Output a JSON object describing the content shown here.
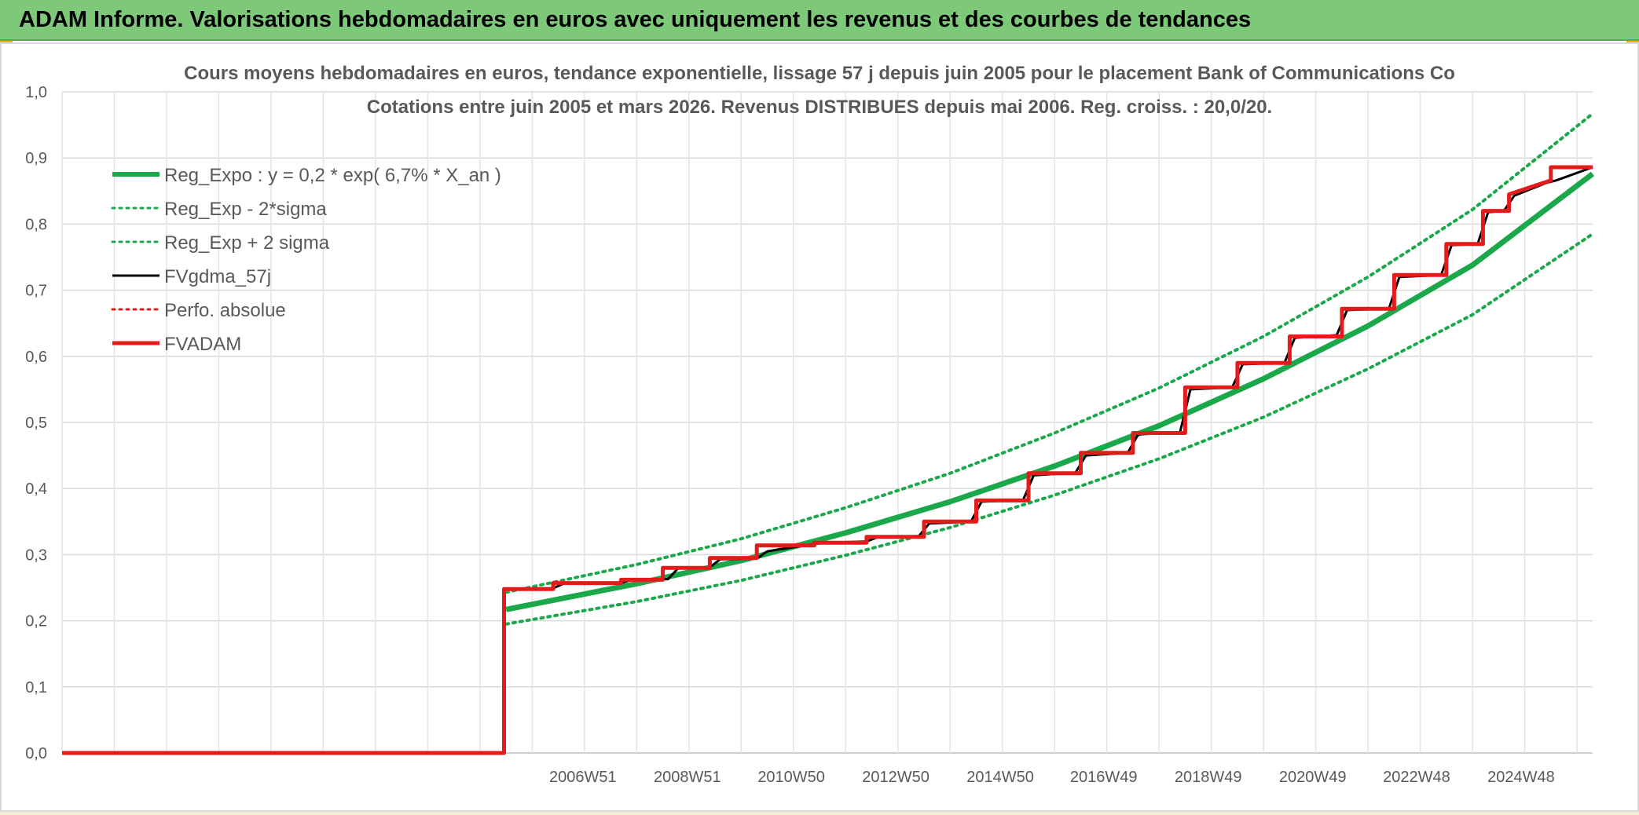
{
  "banner": {
    "title": "ADAM Informe. Valorisations hebdomadaires en euros avec uniquement les revenus et des courbes de tendances"
  },
  "colors": {
    "banner_bg": "#7ec87a",
    "accent_corner": "#f2b600",
    "reg_green": "#1aa84a",
    "adam_red": "#e31b1b",
    "fv_black": "#000000"
  },
  "chart_data": {
    "type": "line",
    "title": "Cours moyens hebdomadaires en euros, tendance exponentielle, lissage 57 j depuis juin 2005 pour le placement Bank of Communications Co",
    "subtitle": "Cotations entre juin 2005 et mars 2026. Revenus DISTRIBUES depuis mai 2006. Reg. croiss. : 20,0/20.",
    "xlabel": "",
    "ylabel": "",
    "ylim": [
      0,
      1.0
    ],
    "y_ticks": [
      "0,0",
      "0,1",
      "0,2",
      "0,3",
      "0,4",
      "0,5",
      "0,6",
      "0,7",
      "0,8",
      "0,9",
      "1,0"
    ],
    "xlim": [
      1997.0,
      2026.3
    ],
    "x_tick_labels": [
      {
        "label": "2006W51",
        "x": 2006.97
      },
      {
        "label": "2008W51",
        "x": 2008.97
      },
      {
        "label": "2010W50",
        "x": 2010.96
      },
      {
        "label": "2012W50",
        "x": 2012.96
      },
      {
        "label": "2014W50",
        "x": 2014.96
      },
      {
        "label": "2016W49",
        "x": 2016.94
      },
      {
        "label": "2018W49",
        "x": 2018.94
      },
      {
        "label": "2020W49",
        "x": 2020.94
      },
      {
        "label": "2022W48",
        "x": 2022.93
      },
      {
        "label": "2024W48",
        "x": 2024.93
      }
    ],
    "grid": true,
    "legend_position": "top-left",
    "series": [
      {
        "name": "Reg_Expo : y = 0,2 * exp( 6,7% *  X_an )",
        "style": "solid-thick",
        "color": "#1aa84a",
        "x": [
          2005.5,
          2008,
          2010,
          2012,
          2014,
          2016,
          2018,
          2020,
          2022,
          2024,
          2026.3
        ],
        "y": [
          0.217,
          0.256,
          0.291,
          0.333,
          0.38,
          0.434,
          0.495,
          0.566,
          0.646,
          0.738,
          0.876
        ]
      },
      {
        "name": "Reg_Exp - 2*sigma",
        "style": "dotted",
        "color": "#1aa84a",
        "x": [
          2005.5,
          2008,
          2010,
          2012,
          2014,
          2016,
          2018,
          2020,
          2022,
          2024,
          2026.3
        ],
        "y": [
          0.195,
          0.229,
          0.261,
          0.299,
          0.341,
          0.39,
          0.445,
          0.508,
          0.581,
          0.663,
          0.785
        ]
      },
      {
        "name": "Reg_Exp + 2 sigma",
        "style": "dotted",
        "color": "#1aa84a",
        "x": [
          2005.5,
          2008,
          2010,
          2012,
          2014,
          2016,
          2018,
          2020,
          2022,
          2024,
          2026.3
        ],
        "y": [
          0.243,
          0.285,
          0.324,
          0.371,
          0.423,
          0.484,
          0.552,
          0.63,
          0.72,
          0.822,
          0.967
        ]
      },
      {
        "name": "FVgdma_57j",
        "style": "solid",
        "color": "#000000",
        "x": [
          1997.0,
          2005.46,
          2005.46,
          2006.4,
          2006.6,
          2007.7,
          2007.9,
          2008.6,
          2008.8,
          2009.4,
          2009.6,
          2010.3,
          2010.5,
          2011.4,
          2011.6,
          2012.4,
          2012.6,
          2013.4,
          2013.6,
          2014.4,
          2014.6,
          2015.4,
          2015.6,
          2016.4,
          2016.6,
          2017.4,
          2017.6,
          2018.4,
          2018.6,
          2019.4,
          2019.6,
          2020.4,
          2020.6,
          2021.4,
          2021.6,
          2022.4,
          2022.6,
          2023.4,
          2023.6,
          2024.1,
          2024.3,
          2024.6,
          2024.8,
          2025.4,
          2025.6,
          2026.3
        ],
        "y": [
          0.0,
          0.0,
          0.248,
          0.249,
          0.256,
          0.257,
          0.262,
          0.263,
          0.28,
          0.281,
          0.293,
          0.294,
          0.305,
          0.316,
          0.318,
          0.32,
          0.326,
          0.328,
          0.347,
          0.35,
          0.38,
          0.383,
          0.42,
          0.424,
          0.45,
          0.454,
          0.482,
          0.485,
          0.55,
          0.553,
          0.588,
          0.59,
          0.628,
          0.632,
          0.67,
          0.672,
          0.72,
          0.723,
          0.768,
          0.77,
          0.818,
          0.82,
          0.843,
          0.862,
          0.866,
          0.886
        ]
      },
      {
        "name": "Perfo. absolue",
        "style": "dotted",
        "color": "#e31b1b",
        "x": [],
        "y": []
      },
      {
        "name": "FVADAM",
        "style": "solid-thick",
        "color": "#e31b1b",
        "x": [
          1997.0,
          2005.46,
          2005.46,
          2006.4,
          2006.4,
          2007.7,
          2007.7,
          2008.5,
          2008.5,
          2009.4,
          2009.4,
          2010.3,
          2010.3,
          2011.4,
          2011.4,
          2012.4,
          2012.4,
          2013.5,
          2013.5,
          2014.5,
          2014.5,
          2015.5,
          2015.5,
          2016.5,
          2016.5,
          2017.5,
          2017.5,
          2018.5,
          2018.5,
          2019.5,
          2019.5,
          2020.5,
          2020.5,
          2021.5,
          2021.5,
          2022.5,
          2022.5,
          2023.5,
          2023.5,
          2024.2,
          2024.2,
          2024.7,
          2024.7,
          2025.5,
          2025.5,
          2026.3
        ],
        "y": [
          0.0,
          0.0,
          0.248,
          0.248,
          0.257,
          0.257,
          0.262,
          0.262,
          0.28,
          0.28,
          0.295,
          0.295,
          0.314,
          0.314,
          0.318,
          0.318,
          0.327,
          0.327,
          0.35,
          0.35,
          0.382,
          0.382,
          0.423,
          0.423,
          0.454,
          0.454,
          0.484,
          0.484,
          0.553,
          0.553,
          0.59,
          0.59,
          0.63,
          0.63,
          0.672,
          0.672,
          0.723,
          0.723,
          0.77,
          0.77,
          0.82,
          0.82,
          0.845,
          0.866,
          0.886,
          0.886
        ]
      }
    ]
  }
}
